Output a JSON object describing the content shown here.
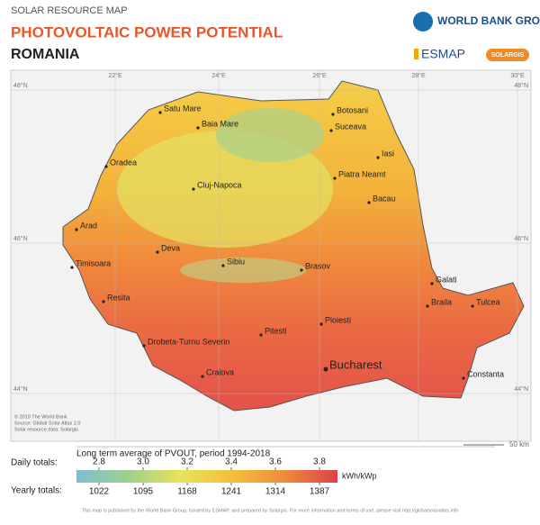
{
  "header": {
    "kicker": "SOLAR RESOURCE MAP",
    "title": "PHOTOVOLTAIC POWER POTENTIAL",
    "country": "ROMANIA"
  },
  "logos": {
    "world_bank": "WORLD BANK GROUP",
    "esmap": "ESMAP",
    "solargis": "SOLARGIS"
  },
  "map": {
    "longitudes": [
      "22°E",
      "24°E",
      "26°E",
      "28°E",
      "30°E"
    ],
    "latitudes": [
      "48°N",
      "46°N",
      "44°N"
    ],
    "cities": [
      "Satu Mare",
      "Baia Mare",
      "Botosani",
      "Suceava",
      "Iasi",
      "Oradea",
      "Cluj-Napoca",
      "Piatra Neamt",
      "Bacau",
      "Arad",
      "Deva",
      "Sibiu",
      "Brasov",
      "Timisoara",
      "Resita",
      "Galati",
      "Braila",
      "Tulcea",
      "Ploiesti",
      "Pitesti",
      "Drobeta-Turnu Severin",
      "Craiova",
      "Bucharest",
      "Constanta"
    ],
    "credits": [
      "© 2019 The World Bank",
      "Source: Global Solar Atlas 2.0",
      "Solar resource data: Solargis"
    ],
    "scale": "50 km"
  },
  "legend": {
    "title": "Long term average of PVOUT, period 1994-2018",
    "daily_label": "Daily totals:",
    "daily": [
      2.8,
      {
        "value": 3,
        "label": "3.0"
      },
      3.2,
      3.4,
      3.6,
      3.8
    ],
    "unit": "kWh/kWp",
    "yearly_label": "Yearly totals:",
    "yearly": [
      1022,
      1095,
      1168,
      1241,
      1314,
      1387
    ]
  },
  "footer": "This map is published by the World Bank Group, funded by ESMAP, and prepared by Solargis. For more information and terms of use, please visit http://globalsolaratlas.info"
}
